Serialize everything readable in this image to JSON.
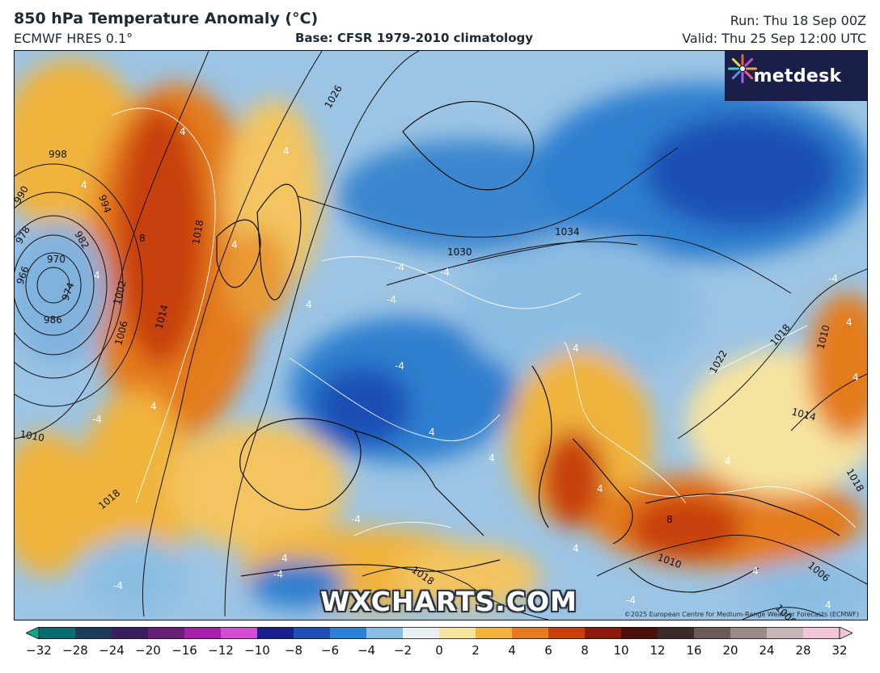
{
  "header": {
    "title": "850 hPa Temperature Anomaly (°C)",
    "model": "ECMWF HRES 0.1°",
    "base": "Base: CFSR 1979-2010 climatology",
    "run": "Run: Thu 18 Sep 00Z",
    "valid": "Valid: Thu 25 Sep 12:00 UTC"
  },
  "branding": {
    "logo_text": "metdesk",
    "watermark": "WXCHARTS.COM",
    "copyright": "©2025 European Centre for Medium-Range Weather Forecasts (ECMWF)"
  },
  "isobar_labels": [
    "998",
    "990",
    "978",
    "970",
    "966",
    "974",
    "986",
    "982",
    "994",
    "1002",
    "1006",
    "1014",
    "1018",
    "1026",
    "1030",
    "1034",
    "1022",
    "1018",
    "1010",
    "1014",
    "1010",
    "1018",
    "1010",
    "1006",
    "1018",
    "1006",
    "1018"
  ],
  "anomaly_labels": [
    "4",
    "8",
    "4",
    "4",
    "4",
    "4",
    "-4",
    "-4",
    "4",
    "-4",
    "4",
    "-4",
    "4",
    "-4",
    "4",
    "-4",
    "4",
    "4",
    "8",
    "4",
    "4",
    "-4",
    "-4",
    "4",
    "4",
    "4",
    "-4",
    "4",
    "4",
    "-4"
  ],
  "colorbar": {
    "ticks": [
      "−32",
      "−28",
      "−24",
      "−20",
      "−16",
      "−12",
      "−10",
      "−8",
      "−6",
      "−4",
      "−2",
      "0",
      "2",
      "4",
      "6",
      "8",
      "10",
      "12",
      "16",
      "20",
      "24",
      "28",
      "32"
    ],
    "colors": [
      "#0fa88a",
      "#0c6b6e",
      "#1d3b5a",
      "#3a1f5e",
      "#6a1f78",
      "#a523a8",
      "#cf4fd0",
      "#1b1f8a",
      "#1d4fb5",
      "#2f7fcf",
      "#8bbde3",
      "#e8f0f6",
      "#f6e3a0",
      "#f0b43c",
      "#e47b1e",
      "#c8400f",
      "#8c1a0e",
      "#4a100c",
      "#3a2a28",
      "#6a5a58",
      "#9a8a88",
      "#c9b4b8",
      "#f2c6d8"
    ]
  }
}
